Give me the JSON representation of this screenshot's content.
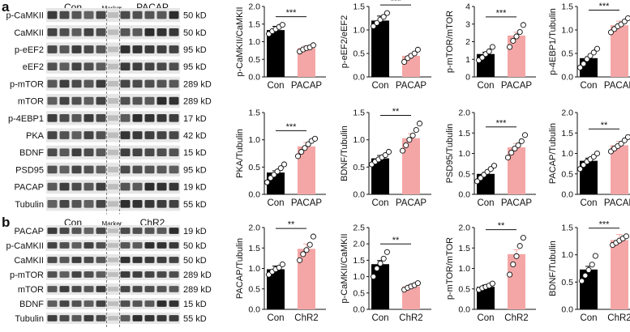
{
  "panels": {
    "a": {
      "letter": "a",
      "group_left": "Con",
      "marker": "Marker",
      "group_right": "PACAP",
      "blots": [
        {
          "name": "p-CaMKII",
          "kd": "50 kD"
        },
        {
          "name": "CaMKII",
          "kd": "50 kD"
        },
        {
          "name": "p-eEF2",
          "kd": "95 kD"
        },
        {
          "name": "eEF2",
          "kd": "95 kD"
        },
        {
          "name": "p-mTOR",
          "kd": "289 kD"
        },
        {
          "name": "mTOR",
          "kd": "289 kD"
        },
        {
          "name": "p-4EBP1",
          "kd": "17 kD"
        },
        {
          "name": "PKA",
          "kd": "42 kD"
        },
        {
          "name": "BDNF",
          "kd": "15 kD"
        },
        {
          "name": "PSD95",
          "kd": "95 kD"
        },
        {
          "name": "PACAP",
          "kd": "19 kD"
        },
        {
          "name": "Tubulin",
          "kd": "55 kD"
        }
      ]
    },
    "b": {
      "letter": "b",
      "group_left": "Con",
      "marker": "Marker",
      "group_right": "ChR2",
      "blots": [
        {
          "name": "PACAP",
          "kd": "19 kD"
        },
        {
          "name": "p-CaMKII",
          "kd": "50 kD"
        },
        {
          "name": "CaMKII",
          "kd": "50 kD"
        },
        {
          "name": "p-mTOR",
          "kd": "289 kD"
        },
        {
          "name": "mTOR",
          "kd": "289 kD"
        },
        {
          "name": "BDNF",
          "kd": "15 kD"
        },
        {
          "name": "Tubulin",
          "kd": "55 kD"
        }
      ]
    }
  },
  "chart_data": [
    {
      "type": "bar",
      "categories": [
        "Con",
        "PACAP"
      ],
      "values": [
        1.33,
        0.82
      ],
      "ylabel": "p-CaMKII/CaMKII",
      "ylim": [
        0,
        2.0
      ],
      "yticks": [
        "0.0",
        "0.5",
        "1.0",
        "1.5",
        "2.0"
      ],
      "significance": "***",
      "points": [
        [
          1.22,
          1.3,
          1.36,
          1.42,
          1.48
        ],
        [
          0.72,
          0.78,
          0.82,
          0.84,
          0.9
        ]
      ],
      "colors": [
        "#000000",
        "#f4a6a6"
      ]
    },
    {
      "type": "bar",
      "categories": [
        "Con",
        "PACAP"
      ],
      "values": [
        1.2,
        0.45
      ],
      "ylabel": "p-eEF2/eEF2",
      "ylim": [
        0,
        1.5
      ],
      "yticks": [
        "0.0",
        "0.5",
        "1.0",
        "1.5"
      ],
      "significance": "***",
      "points": [
        [
          1.08,
          1.15,
          1.22,
          1.28,
          1.36
        ],
        [
          0.32,
          0.4,
          0.45,
          0.5,
          0.58
        ]
      ],
      "colors": [
        "#000000",
        "#f4a6a6"
      ]
    },
    {
      "type": "bar",
      "categories": [
        "Con",
        "PACAP"
      ],
      "values": [
        1.3,
        2.35
      ],
      "ylabel": "p-mTOR/mTOR",
      "ylim": [
        0,
        4
      ],
      "yticks": [
        "0",
        "1",
        "2",
        "3",
        "4"
      ],
      "significance": "***",
      "points": [
        [
          0.95,
          1.1,
          1.3,
          1.45,
          1.7
        ],
        [
          1.7,
          2.05,
          2.3,
          2.55,
          2.95
        ]
      ],
      "colors": [
        "#000000",
        "#f4a6a6"
      ]
    },
    {
      "type": "bar",
      "categories": [
        "Con",
        "PACAP"
      ],
      "values": [
        0.4,
        1.1
      ],
      "ylabel": "p-4EBP1/Tubulin",
      "ylim": [
        0,
        1.5
      ],
      "yticks": [
        "0.0",
        "0.5",
        "1.0",
        "1.5"
      ],
      "significance": "***",
      "points": [
        [
          0.2,
          0.28,
          0.38,
          0.45,
          0.52,
          0.6
        ],
        [
          0.95,
          1.02,
          1.08,
          1.12,
          1.18,
          1.25
        ]
      ],
      "colors": [
        "#000000",
        "#f4a6a6"
      ]
    },
    {
      "type": "bar",
      "categories": [
        "Con",
        "PACAP"
      ],
      "values": [
        0.4,
        0.88
      ],
      "ylabel": "PKA/Tubulin",
      "ylim": [
        0,
        1.5
      ],
      "yticks": [
        "0.0",
        "0.5",
        "1.0",
        "1.5"
      ],
      "significance": "***",
      "points": [
        [
          0.22,
          0.3,
          0.36,
          0.42,
          0.48,
          0.55
        ],
        [
          0.7,
          0.78,
          0.85,
          0.92,
          0.98,
          1.02
        ]
      ],
      "colors": [
        "#000000",
        "#f4a6a6"
      ]
    },
    {
      "type": "bar",
      "categories": [
        "Con",
        "PACAP"
      ],
      "values": [
        0.66,
        1.03
      ],
      "ylabel": "BDNF/Tubulin",
      "ylim": [
        0,
        1.5
      ],
      "yticks": [
        "0.0",
        "0.5",
        "1.0",
        "1.5"
      ],
      "significance": "**",
      "points": [
        [
          0.55,
          0.6,
          0.64,
          0.68,
          0.72,
          0.78
        ],
        [
          0.8,
          0.9,
          1.0,
          1.08,
          1.18,
          1.3
        ]
      ],
      "colors": [
        "#000000",
        "#f4a6a6"
      ]
    },
    {
      "type": "bar",
      "categories": [
        "Con",
        "PACAP"
      ],
      "values": [
        0.5,
        1.15
      ],
      "ylabel": "PSD95/Tubulin",
      "ylim": [
        0,
        2.0
      ],
      "yticks": [
        "0.0",
        "0.5",
        "1.0",
        "1.5",
        "2.0"
      ],
      "significance": "***",
      "points": [
        [
          0.32,
          0.4,
          0.48,
          0.55,
          0.62,
          0.7
        ],
        [
          0.9,
          1.02,
          1.12,
          1.2,
          1.3,
          1.45
        ]
      ],
      "colors": [
        "#000000",
        "#f4a6a6"
      ]
    },
    {
      "type": "bar",
      "categories": [
        "Con",
        "PACAP"
      ],
      "values": [
        0.82,
        1.2
      ],
      "ylabel": "PACAP/Tubulin",
      "ylim": [
        0,
        2.0
      ],
      "yticks": [
        "0.0",
        "0.5",
        "1.0",
        "1.5",
        "2.0"
      ],
      "significance": "**",
      "points": [
        [
          0.62,
          0.72,
          0.8,
          0.86,
          0.92,
          1.0
        ],
        [
          1.05,
          1.12,
          1.18,
          1.24,
          1.32,
          1.4
        ]
      ],
      "colors": [
        "#000000",
        "#f4a6a6"
      ]
    },
    {
      "type": "bar",
      "categories": [
        "Con",
        "ChR2"
      ],
      "values": [
        0.98,
        1.48
      ],
      "ylabel": "PACAP/Tubulin",
      "ylim": [
        0,
        2.0
      ],
      "yticks": [
        "0.0",
        "0.5",
        "1.0",
        "1.5",
        "2.0"
      ],
      "significance": "**",
      "points": [
        [
          0.85,
          0.92,
          0.98,
          1.02,
          1.1
        ],
        [
          1.2,
          1.35,
          1.45,
          1.58,
          1.78
        ]
      ],
      "colors": [
        "#000000",
        "#f4a6a6"
      ]
    },
    {
      "type": "bar",
      "categories": [
        "Con",
        "ChR2"
      ],
      "values": [
        1.38,
        0.7
      ],
      "ylabel": "p-CaMKII/CaMKII",
      "ylim": [
        0,
        2.5
      ],
      "yticks": [
        "0.0",
        "0.5",
        "1.0",
        "1.5",
        "2.0",
        "2.5"
      ],
      "significance": "**",
      "points": [
        [
          1.0,
          1.25,
          1.4,
          1.55,
          1.75
        ],
        [
          0.6,
          0.66,
          0.7,
          0.74,
          0.8
        ]
      ],
      "colors": [
        "#000000",
        "#f4a6a6"
      ]
    },
    {
      "type": "bar",
      "categories": [
        "Con",
        "ChR2"
      ],
      "values": [
        0.55,
        1.35
      ],
      "ylabel": "p-mTOR/mTOR",
      "ylim": [
        0,
        2.0
      ],
      "yticks": [
        "0.0",
        "0.5",
        "1.0",
        "1.5",
        "2.0"
      ],
      "significance": "**",
      "points": [
        [
          0.48,
          0.52,
          0.55,
          0.58,
          0.63
        ],
        [
          0.85,
          1.1,
          1.3,
          1.55,
          1.75
        ]
      ],
      "colors": [
        "#000000",
        "#f4a6a6"
      ]
    },
    {
      "type": "bar",
      "categories": [
        "Con",
        "ChR2"
      ],
      "values": [
        0.73,
        1.27
      ],
      "ylabel": "BDNF/Tubulin",
      "ylim": [
        0,
        1.5
      ],
      "yticks": [
        "0.0",
        "0.5",
        "1.0",
        "1.5"
      ],
      "significance": "***",
      "points": [
        [
          0.52,
          0.62,
          0.72,
          0.82,
          0.98
        ],
        [
          1.18,
          1.22,
          1.26,
          1.3,
          1.34
        ]
      ],
      "colors": [
        "#000000",
        "#f4a6a6"
      ]
    }
  ]
}
